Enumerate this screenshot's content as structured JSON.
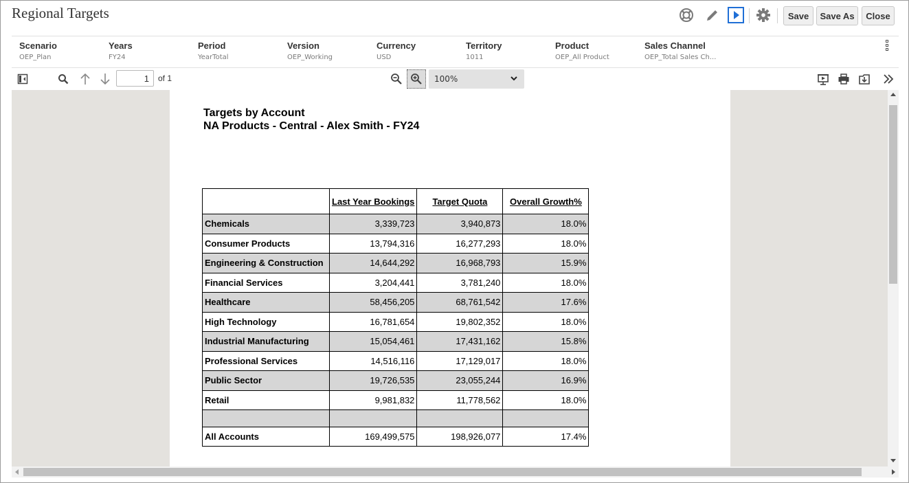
{
  "app": {
    "title": "Regional Targets"
  },
  "header": {
    "icons": [
      "help-lifebuoy-icon",
      "edit-pencil-icon",
      "run-play-icon",
      "settings-gear-icon"
    ],
    "save_label": "Save",
    "save_as_label": "Save As",
    "close_label": "Close",
    "accent": "#1f6fd6"
  },
  "pov": {
    "items": [
      {
        "name": "Scenario",
        "value": "OEP_Plan"
      },
      {
        "name": "Years",
        "value": "FY24"
      },
      {
        "name": "Period",
        "value": "YearTotal"
      },
      {
        "name": "Version",
        "value": "OEP_Working"
      },
      {
        "name": "Currency",
        "value": "USD"
      },
      {
        "name": "Territory",
        "value": "1011"
      },
      {
        "name": "Product",
        "value": "OEP_All Product"
      },
      {
        "name": "Sales Channel",
        "value": "OEP_Total Sales Ch..."
      }
    ]
  },
  "viewer_toolbar": {
    "page_number": "1",
    "page_of": "of 1",
    "zoom": "100%"
  },
  "report": {
    "title_line1": "Targets by Account",
    "title_line2": "NA Products - Central - Alex Smith - FY24",
    "columns": [
      "Last Year Bookings",
      "Target Quota",
      "Overall Growth%"
    ],
    "rows": [
      {
        "account": "Chemicals",
        "last_year": "3,339,723",
        "target": "3,940,873",
        "growth": "18.0%"
      },
      {
        "account": "Consumer Products",
        "last_year": "13,794,316",
        "target": "16,277,293",
        "growth": "18.0%"
      },
      {
        "account": "Engineering & Construction",
        "last_year": "14,644,292",
        "target": "16,968,793",
        "growth": "15.9%"
      },
      {
        "account": "Financial Services",
        "last_year": "3,204,441",
        "target": "3,781,240",
        "growth": "18.0%"
      },
      {
        "account": "Healthcare",
        "last_year": "58,456,205",
        "target": "68,761,542",
        "growth": "17.6%"
      },
      {
        "account": "High Technology",
        "last_year": "16,781,654",
        "target": "19,802,352",
        "growth": "18.0%"
      },
      {
        "account": "Industrial Manufacturing",
        "last_year": "15,054,461",
        "target": "17,431,162",
        "growth": "15.8%"
      },
      {
        "account": "Professional Services",
        "last_year": "14,516,116",
        "target": "17,129,017",
        "growth": "18.0%"
      },
      {
        "account": "Public Sector",
        "last_year": "19,726,535",
        "target": "23,055,244",
        "growth": "16.9%"
      },
      {
        "account": "Retail",
        "last_year": "9,981,832",
        "target": "11,778,562",
        "growth": "18.0%"
      }
    ],
    "total": {
      "account": "All Accounts",
      "last_year": "169,499,575",
      "target": "198,926,077",
      "growth": "17.4%"
    }
  }
}
